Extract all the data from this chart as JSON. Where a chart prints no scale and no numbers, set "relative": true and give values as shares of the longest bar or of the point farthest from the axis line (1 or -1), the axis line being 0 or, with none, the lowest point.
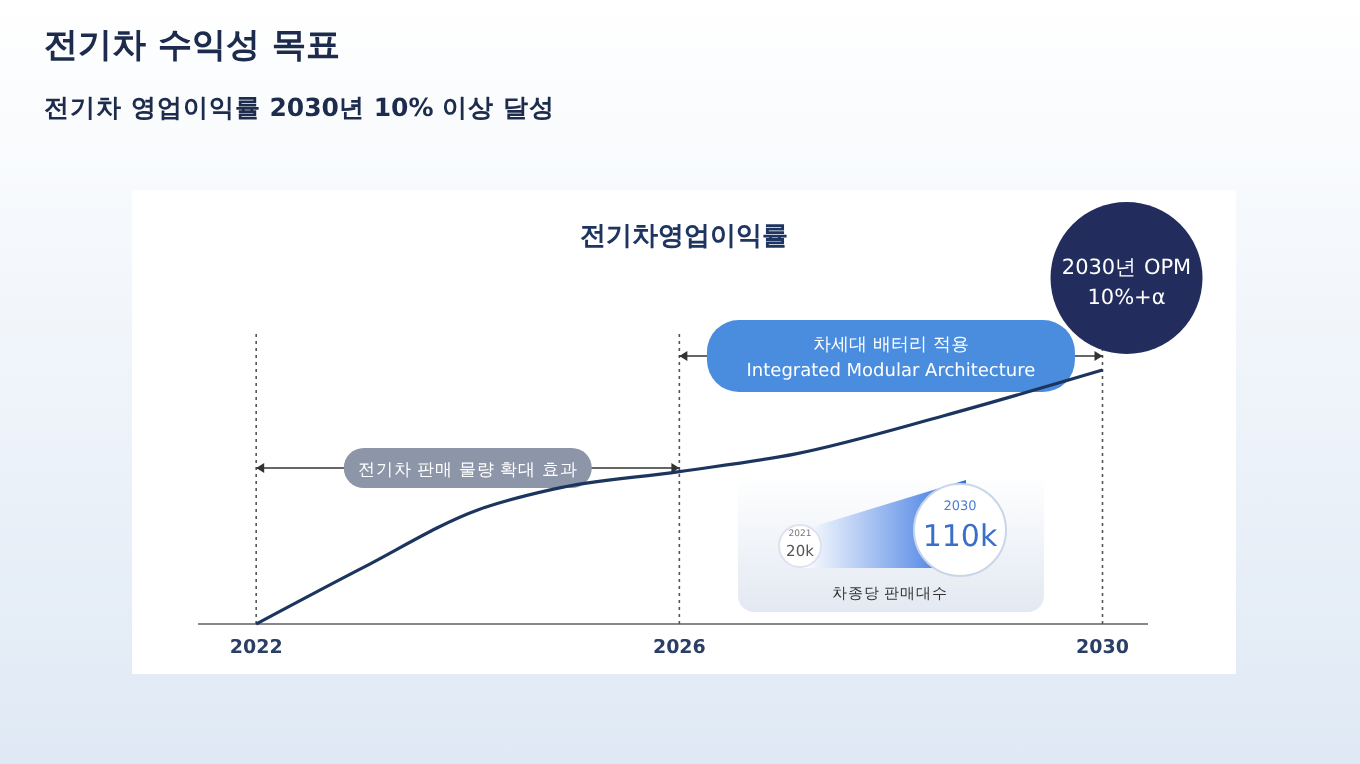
{
  "chart_data": {
    "type": "line",
    "title": "전기차 수익성 목표",
    "subtitle": "전기차 영업이익률 2030년 10% 이상 달성",
    "relative": true,
    "x": [
      2022,
      2023,
      2024.1,
      2024.8,
      2026,
      2027.1,
      2028.5,
      2030
    ],
    "series": [
      {
        "color": "#1c355e",
        "values": [
          0,
          0.22,
          0.45,
          0.53,
          0.6,
          0.67,
          0.82,
          1
        ]
      }
    ],
    "xlim": [
      2021.45,
      2030.43
    ],
    "xticks": [
      2022,
      2026,
      2030
    ],
    "ref_lines": [
      {
        "axis": "x",
        "value": 2022,
        "line_style": "dotted",
        "color": "#555555"
      },
      {
        "axis": "x",
        "value": 2026,
        "line_style": "dotted",
        "color": "#555555"
      },
      {
        "axis": "x",
        "value": 2030,
        "line_style": "dotted",
        "color": "#555555"
      }
    ],
    "annotations": [
      "전기차영업이익률",
      "전기차 판매 물량 확대 효과",
      "차세대 배터리 적용\nIntegrated Modular Architecture",
      "2030년 OPM\n10%+α",
      "2021",
      "20k",
      "2030",
      "110k",
      "차종당 판매대수"
    ],
    "line_style": "solid"
  }
}
